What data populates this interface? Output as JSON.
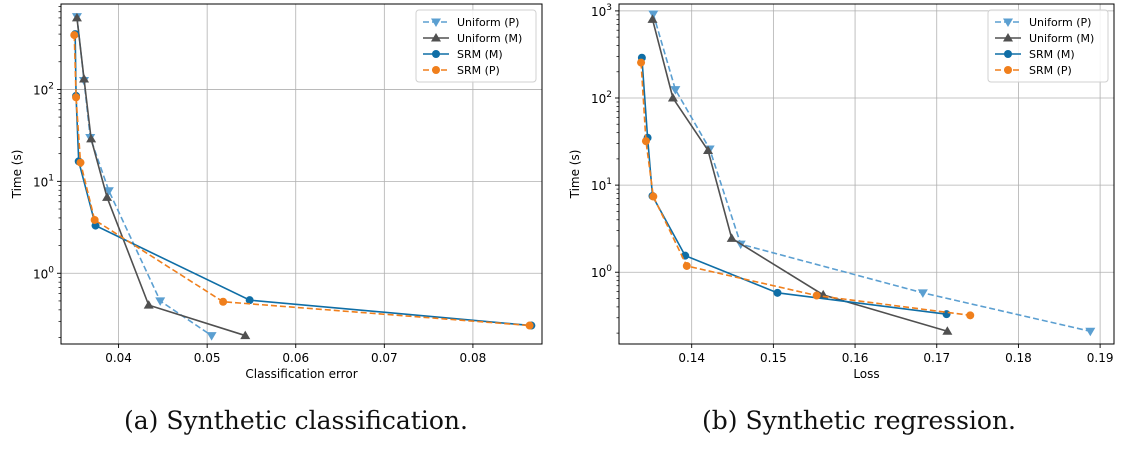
{
  "chart_data": [
    {
      "type": "line",
      "caption": "(a) Synthetic classification.",
      "xlabel": "Classification error",
      "ylabel": "Time (s)",
      "xlim": [
        0.0335,
        0.0878
      ],
      "ylim": [
        0.17,
        850
      ],
      "yscale": "log",
      "xticks": [
        0.04,
        0.05,
        0.06,
        0.07,
        0.08
      ],
      "xtick_labels": [
        "0.04",
        "0.05",
        "0.06",
        "0.07",
        "0.08"
      ],
      "yticks": [
        1,
        10,
        100
      ],
      "ytick_labels": [
        "10^0",
        "10^1",
        "10^2"
      ],
      "grid": true,
      "legend_position": "top-right",
      "series": [
        {
          "name": "Uniform (P)",
          "color": "#5b9fd1",
          "dash": "dashed",
          "marker": "triangle-down",
          "x": [
            0.0353,
            0.0361,
            0.0368,
            0.0389,
            0.0447,
            0.0505
          ],
          "y": [
            620,
            125,
            30,
            7.9,
            0.5,
            0.21
          ]
        },
        {
          "name": "Uniform (M)",
          "color": "#505050",
          "dash": "solid",
          "marker": "triangle-up",
          "x": [
            0.0353,
            0.0361,
            0.0369,
            0.0387,
            0.0434,
            0.0543
          ],
          "y": [
            600,
            130,
            29,
            6.7,
            0.45,
            0.21
          ]
        },
        {
          "name": "SRM (M)",
          "color": "#0f6ea6",
          "dash": "solid",
          "marker": "circle",
          "x": [
            0.0351,
            0.0352,
            0.0355,
            0.0374,
            0.0548,
            0.0866
          ],
          "y": [
            400,
            85,
            16.5,
            3.3,
            0.51,
            0.27
          ]
        },
        {
          "name": "SRM (P)",
          "color": "#f07f1c",
          "dash": "dashed",
          "marker": "circle",
          "x": [
            0.035,
            0.0352,
            0.0357,
            0.0373,
            0.0518,
            0.0864
          ],
          "y": [
            390,
            82,
            16.0,
            3.8,
            0.49,
            0.27
          ]
        }
      ]
    },
    {
      "type": "line",
      "caption": "(b) Synthetic regression.",
      "xlabel": "Loss",
      "ylabel": "Time (s)",
      "xlim": [
        0.1311,
        0.1917
      ],
      "ylim": [
        0.15,
        1200
      ],
      "yscale": "log",
      "xticks": [
        0.14,
        0.15,
        0.16,
        0.17,
        0.18,
        0.19
      ],
      "xtick_labels": [
        "0.14",
        "0.15",
        "0.16",
        "0.17",
        "0.18",
        "0.19"
      ],
      "yticks": [
        1,
        10,
        100,
        1000
      ],
      "ytick_labels": [
        "10^0",
        "10^1",
        "10^2",
        "10^3"
      ],
      "grid": true,
      "legend_position": "top-right",
      "series": [
        {
          "name": "Uniform (P)",
          "color": "#5b9fd1",
          "dash": "dashed",
          "marker": "triangle-down",
          "x": [
            0.1353,
            0.138,
            0.1422,
            0.146,
            0.1683,
            0.1888
          ],
          "y": [
            920,
            125,
            26,
            2.1,
            0.58,
            0.21
          ]
        },
        {
          "name": "Uniform (M)",
          "color": "#505050",
          "dash": "solid",
          "marker": "triangle-up",
          "x": [
            0.1352,
            0.1377,
            0.142,
            0.1449,
            0.1561,
            0.1713
          ],
          "y": [
            800,
            100,
            25,
            2.45,
            0.55,
            0.21
          ]
        },
        {
          "name": "SRM (M)",
          "color": "#0f6ea6",
          "dash": "solid",
          "marker": "circle",
          "x": [
            0.1339,
            0.1346,
            0.1352,
            0.1392,
            0.1505,
            0.1712
          ],
          "y": [
            290,
            35,
            7.5,
            1.55,
            0.58,
            0.33
          ]
        },
        {
          "name": "SRM (P)",
          "color": "#f07f1c",
          "dash": "dashed",
          "marker": "circle",
          "x": [
            0.1338,
            0.1344,
            0.1353,
            0.1394,
            0.1553,
            0.1741
          ],
          "y": [
            255,
            32,
            7.4,
            1.18,
            0.54,
            0.32
          ]
        }
      ]
    }
  ]
}
